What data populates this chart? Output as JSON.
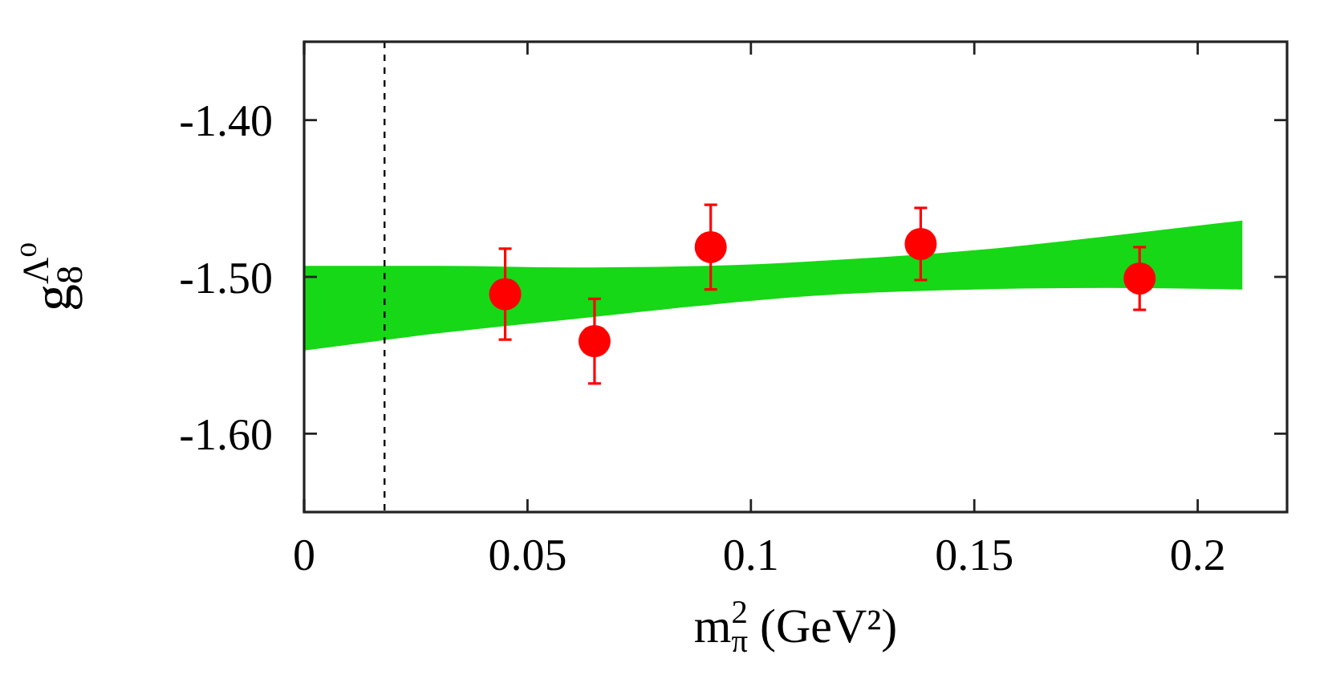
{
  "chart_data": {
    "type": "scatter",
    "xlabel": "m$_{π}$$^{2}$ (GeV²)",
    "ylabel": "g$_{8}$$^{Λ⁰}$",
    "xlim": [
      0,
      0.22
    ],
    "ylim": [
      -1.65,
      -1.35
    ],
    "xticks": [
      0,
      0.05,
      0.1,
      0.15,
      0.2
    ],
    "yticks": [
      {
        "value": -1.6,
        "label": "-1.60"
      },
      {
        "value": -1.5,
        "label": "-1.50"
      },
      {
        "value": -1.4,
        "label": "-1.40"
      }
    ],
    "series": [
      {
        "type": "line",
        "color": "#16d816",
        "x": [
          0,
          0.03,
          0.06,
          0.09,
          0.12,
          0.15,
          0.18,
          0.21
        ],
        "values": [
          null,
          null,
          null,
          null,
          null,
          null,
          null,
          null
        ],
        "upper": [
          -1.493,
          -1.493,
          -1.494,
          -1.493,
          -1.489,
          -1.483,
          -1.474,
          -1.464
        ],
        "lower": [
          -1.547,
          -1.536,
          -1.527,
          -1.518,
          -1.511,
          -1.508,
          -1.507,
          -1.508
        ]
      },
      {
        "color": "#ff0000",
        "marker": "circle",
        "x": [
          0.045,
          0.065,
          0.091,
          0.138,
          0.187
        ],
        "values": [
          -1.511,
          -1.541,
          -1.481,
          -1.479,
          -1.501
        ],
        "errors": [
          0.029,
          0.027,
          0.027,
          0.023,
          0.02
        ]
      }
    ],
    "ref_lines": [
      {
        "axis": "x",
        "value": 0.018,
        "color": "#000000",
        "line_style": "dashed"
      }
    ]
  }
}
